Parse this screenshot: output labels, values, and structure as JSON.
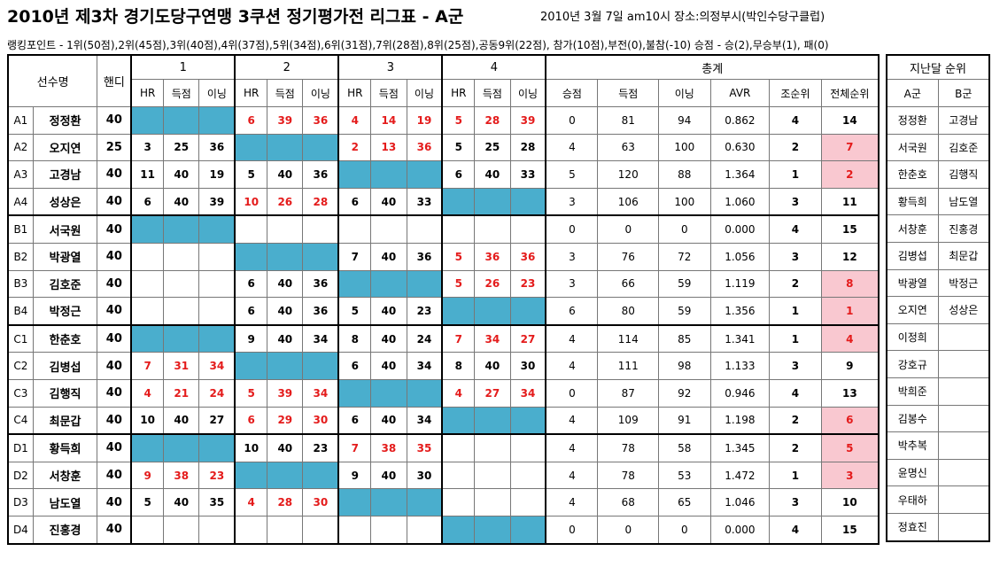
{
  "title": "2010년 제3차 경기도당구연맹 3쿠션 정기평가전 리그표 - A군",
  "info": "2010년 3월 7일 am10시  장소:의정부시(박인수당구클럽)",
  "points": "랭킹포인트 - 1위(50점),2위(45점),3위(40점),4위(37점),5위(34점),6위(31점),7위(28점),8위(25점),공동9위(22점), 참가(10점),부전(0),불참(-10)  승점 - 승(2),무승부(1), 패(0)",
  "headers": {
    "player": "선수명",
    "handi": "핸디",
    "round1": "1",
    "round2": "2",
    "round3": "3",
    "round4": "4",
    "total": "총계",
    "hr": "HR",
    "score": "득점",
    "inning": "이닝",
    "win_pts": "승점",
    "t_score": "득점",
    "t_inning": "이닝",
    "avr": "AVR",
    "group_rank": "조순위",
    "overall_rank": "전체순위"
  },
  "colors": {
    "blue": "#4aaecd",
    "pink": "#f9c8d0",
    "red": "#e41b1b"
  },
  "rows": [
    {
      "code": "A1",
      "name": "정정환",
      "handi": "40",
      "rounds": [
        "blue",
        [
          "6",
          "39",
          "36",
          "red"
        ],
        [
          "4",
          "14",
          "19",
          "red"
        ],
        [
          "5",
          "28",
          "39",
          "red"
        ]
      ],
      "total": [
        "0",
        "81",
        "94",
        "0.862",
        "4",
        "14"
      ],
      "pink": false
    },
    {
      "code": "A2",
      "name": "오지연",
      "handi": "25",
      "rounds": [
        [
          "3",
          "25",
          "36",
          "blk"
        ],
        "blue",
        [
          "2",
          "13",
          "36",
          "red"
        ],
        [
          "5",
          "25",
          "28",
          "blk"
        ]
      ],
      "total": [
        "4",
        "63",
        "100",
        "0.630",
        "2",
        "7"
      ],
      "pink": true
    },
    {
      "code": "A3",
      "name": "고경남",
      "handi": "40",
      "rounds": [
        [
          "11",
          "40",
          "19",
          "blk"
        ],
        [
          "5",
          "40",
          "36",
          "blk"
        ],
        "blue",
        [
          "6",
          "40",
          "33",
          "blk"
        ]
      ],
      "total": [
        "5",
        "120",
        "88",
        "1.364",
        "1",
        "2"
      ],
      "pink": true
    },
    {
      "code": "A4",
      "name": "성상은",
      "handi": "40",
      "rounds": [
        [
          "6",
          "40",
          "39",
          "blk"
        ],
        [
          "10",
          "26",
          "28",
          "red"
        ],
        [
          "6",
          "40",
          "33",
          "blk"
        ],
        "blue"
      ],
      "total": [
        "3",
        "106",
        "100",
        "1.060",
        "3",
        "11"
      ],
      "pink": false
    },
    {
      "code": "B1",
      "name": "서국원",
      "handi": "40",
      "rounds": [
        "blue",
        "empty",
        "empty",
        "empty"
      ],
      "total": [
        "0",
        "0",
        "0",
        "0.000",
        "4",
        "15"
      ],
      "pink": false
    },
    {
      "code": "B2",
      "name": "박광열",
      "handi": "40",
      "rounds": [
        "empty",
        "blue",
        [
          "7",
          "40",
          "36",
          "blk"
        ],
        [
          "5",
          "36",
          "36",
          "red"
        ]
      ],
      "total": [
        "3",
        "76",
        "72",
        "1.056",
        "3",
        "12"
      ],
      "pink": false
    },
    {
      "code": "B3",
      "name": "김호준",
      "handi": "40",
      "rounds": [
        "empty",
        [
          "6",
          "40",
          "36",
          "blk"
        ],
        "blue",
        [
          "5",
          "26",
          "23",
          "red"
        ]
      ],
      "total": [
        "3",
        "66",
        "59",
        "1.119",
        "2",
        "8"
      ],
      "pink": true
    },
    {
      "code": "B4",
      "name": "박정근",
      "handi": "40",
      "rounds": [
        "empty",
        [
          "6",
          "40",
          "36",
          "blk"
        ],
        [
          "5",
          "40",
          "23",
          "blk"
        ],
        "blue"
      ],
      "total": [
        "6",
        "80",
        "59",
        "1.356",
        "1",
        "1"
      ],
      "pink": true
    },
    {
      "code": "C1",
      "name": "한춘호",
      "handi": "40",
      "rounds": [
        "blue",
        [
          "9",
          "40",
          "34",
          "blk"
        ],
        [
          "8",
          "40",
          "24",
          "blk"
        ],
        [
          "7",
          "34",
          "27",
          "red"
        ]
      ],
      "total": [
        "4",
        "114",
        "85",
        "1.341",
        "1",
        "4"
      ],
      "pink": true
    },
    {
      "code": "C2",
      "name": "김병섭",
      "handi": "40",
      "rounds": [
        [
          "7",
          "31",
          "34",
          "red"
        ],
        "blue",
        [
          "6",
          "40",
          "34",
          "blk"
        ],
        [
          "8",
          "40",
          "30",
          "blk"
        ]
      ],
      "total": [
        "4",
        "111",
        "98",
        "1.133",
        "3",
        "9"
      ],
      "pink": false
    },
    {
      "code": "C3",
      "name": "김행직",
      "handi": "40",
      "rounds": [
        [
          "4",
          "21",
          "24",
          "red"
        ],
        [
          "5",
          "39",
          "34",
          "red"
        ],
        "blue",
        [
          "4",
          "27",
          "34",
          "red"
        ]
      ],
      "total": [
        "0",
        "87",
        "92",
        "0.946",
        "4",
        "13"
      ],
      "pink": false
    },
    {
      "code": "C4",
      "name": "최문갑",
      "handi": "40",
      "rounds": [
        [
          "10",
          "40",
          "27",
          "blk"
        ],
        [
          "6",
          "29",
          "30",
          "red"
        ],
        [
          "6",
          "40",
          "34",
          "blk"
        ],
        "blue"
      ],
      "total": [
        "4",
        "109",
        "91",
        "1.198",
        "2",
        "6"
      ],
      "pink": true
    },
    {
      "code": "D1",
      "name": "황득희",
      "handi": "40",
      "rounds": [
        "blue",
        [
          "10",
          "40",
          "23",
          "blk"
        ],
        [
          "7",
          "38",
          "35",
          "red"
        ],
        "empty"
      ],
      "total": [
        "4",
        "78",
        "58",
        "1.345",
        "2",
        "5"
      ],
      "pink": true
    },
    {
      "code": "D2",
      "name": "서창훈",
      "handi": "40",
      "rounds": [
        [
          "9",
          "38",
          "23",
          "red"
        ],
        "blue",
        [
          "9",
          "40",
          "30",
          "blk"
        ],
        "empty"
      ],
      "total": [
        "4",
        "78",
        "53",
        "1.472",
        "1",
        "3"
      ],
      "pink": true
    },
    {
      "code": "D3",
      "name": "남도열",
      "handi": "40",
      "rounds": [
        [
          "5",
          "40",
          "35",
          "blk"
        ],
        [
          "4",
          "28",
          "30",
          "red"
        ],
        "blue",
        "empty"
      ],
      "total": [
        "4",
        "68",
        "65",
        "1.046",
        "3",
        "10"
      ],
      "pink": false
    },
    {
      "code": "D4",
      "name": "진홍경",
      "handi": "40",
      "rounds": [
        "empty",
        "empty",
        "empty",
        "blue"
      ],
      "total": [
        "0",
        "0",
        "0",
        "0.000",
        "4",
        "15"
      ],
      "pink": false
    }
  ],
  "side": {
    "title": "지난달 순위",
    "col_a": "A군",
    "col_b": "B군",
    "rows": [
      [
        "정정환",
        "고경남"
      ],
      [
        "서국원",
        "김호준"
      ],
      [
        "한춘호",
        "김행직"
      ],
      [
        "황득희",
        "남도열"
      ],
      [
        "서창훈",
        "진홍경"
      ],
      [
        "김병섭",
        "최문갑"
      ],
      [
        "박광열",
        "박정근"
      ],
      [
        "오지연",
        "성상은"
      ],
      [
        "이정희",
        ""
      ],
      [
        "강호규",
        ""
      ],
      [
        "박희준",
        ""
      ],
      [
        "김봉수",
        ""
      ],
      [
        "박추복",
        ""
      ],
      [
        "윤명신",
        ""
      ],
      [
        "우태하",
        ""
      ],
      [
        "정효진",
        ""
      ]
    ]
  }
}
